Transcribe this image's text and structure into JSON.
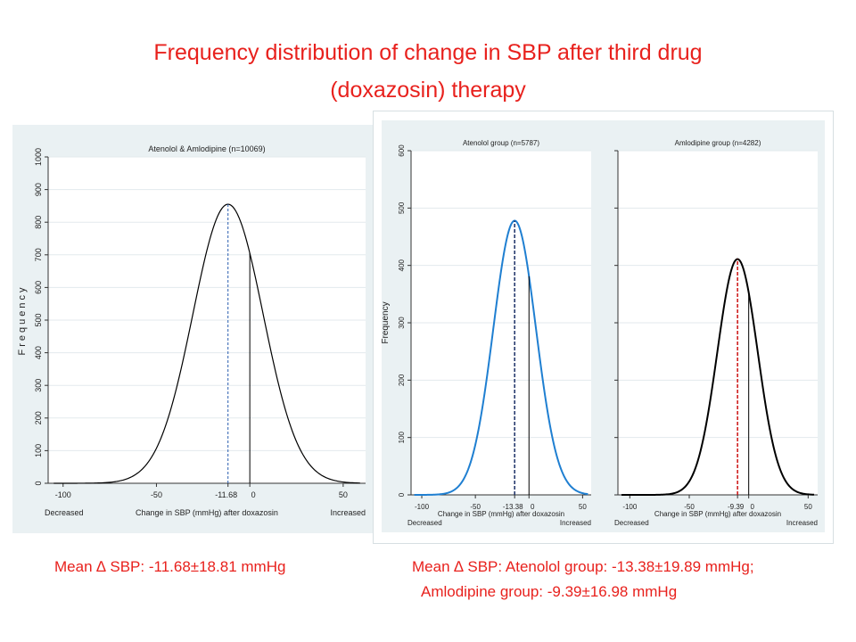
{
  "title_line1": "Frequency distribution of change in SBP after  third drug",
  "title_line2": "(doxazosin) therapy",
  "footer": {
    "left": "Mean ∆ SBP:  -11.68±18.81 mmHg",
    "right_line1": "Mean ∆ SBP:  Atenolol group: -13.38±19.89 mmHg;",
    "right_line2": "Amlodipine group: -9.39±16.98 mmHg"
  },
  "colors": {
    "title": "#e8211d",
    "panel_bg": "#eaf1f3",
    "atenolol_curve": "#1f7fd1",
    "amlodipine_mean_line": "#cc1111",
    "combined_mean_line": "#2a5db0"
  },
  "chart_data": [
    {
      "type": "line",
      "title": "Atenolol & Amlodipine (n=10069)",
      "xlabel": "Change in SBP (mmHg) after doxazosin",
      "ylabel": "Frequency",
      "x_end_labels": {
        "left": "Decreased",
        "right": "Increased"
      },
      "xlim": [
        -108,
        62
      ],
      "ylim": [
        0,
        1000
      ],
      "xticks": [
        -100,
        -50,
        0,
        50
      ],
      "xtick_labels": [
        "-100",
        "-50",
        "0",
        "50"
      ],
      "yticks": [
        0,
        100,
        200,
        300,
        400,
        500,
        600,
        700,
        800,
        900,
        1000
      ],
      "ytick_labels": [
        "0",
        "100",
        "200",
        "300",
        "400",
        "500",
        "600",
        "700",
        "800",
        "900",
        "1000"
      ],
      "mean": -11.68,
      "mean_label": "-11.68",
      "sd": 18.81,
      "peak": 855,
      "curve_color": "#000000",
      "mean_line_color": "#2a5db0",
      "zero_line": 0,
      "grid": "y",
      "legend": "none"
    },
    {
      "type": "line",
      "title": "Atenolol group (n=5787)",
      "xlabel": "Change in SBP (mmHg) after doxazosin",
      "ylabel": "Frequency",
      "x_end_labels": {
        "left": "Decreased",
        "right": "Increased"
      },
      "xlim": [
        -110,
        58
      ],
      "ylim": [
        0,
        600
      ],
      "xticks": [
        -100,
        -50,
        0,
        50
      ],
      "xtick_labels": [
        "-100",
        "-50",
        "0",
        "50"
      ],
      "yticks": [
        0,
        100,
        200,
        300,
        400,
        500,
        600
      ],
      "ytick_labels": [
        "0",
        "100",
        "200",
        "300",
        "400",
        "500",
        "600"
      ],
      "mean": -13.38,
      "mean_label": "-13.38",
      "sd": 19.89,
      "peak": 478,
      "curve_color": "#1f7fd1",
      "mean_line_color": "#1a2f66",
      "zero_line": 0,
      "grid": "y",
      "legend": "none"
    },
    {
      "type": "line",
      "title": "Amlodipine group (n=4282)",
      "xlabel": "Change in SBP (mmHg) after doxazosin",
      "ylabel": "",
      "x_end_labels": {
        "left": "Decreased",
        "right": "Increased"
      },
      "xlim": [
        -110,
        58
      ],
      "ylim": [
        0,
        600
      ],
      "xticks": [
        -100,
        -50,
        0,
        50
      ],
      "xtick_labels": [
        "-100",
        "-50",
        "0",
        "50"
      ],
      "yticks": [
        0,
        100,
        200,
        300,
        400,
        500,
        600
      ],
      "ytick_labels": [],
      "mean": -9.39,
      "mean_label": "-9.39",
      "sd": 16.98,
      "peak": 411,
      "curve_color": "#000000",
      "mean_line_color": "#cc1111",
      "zero_line": 0,
      "grid": "y",
      "legend": "none"
    }
  ]
}
